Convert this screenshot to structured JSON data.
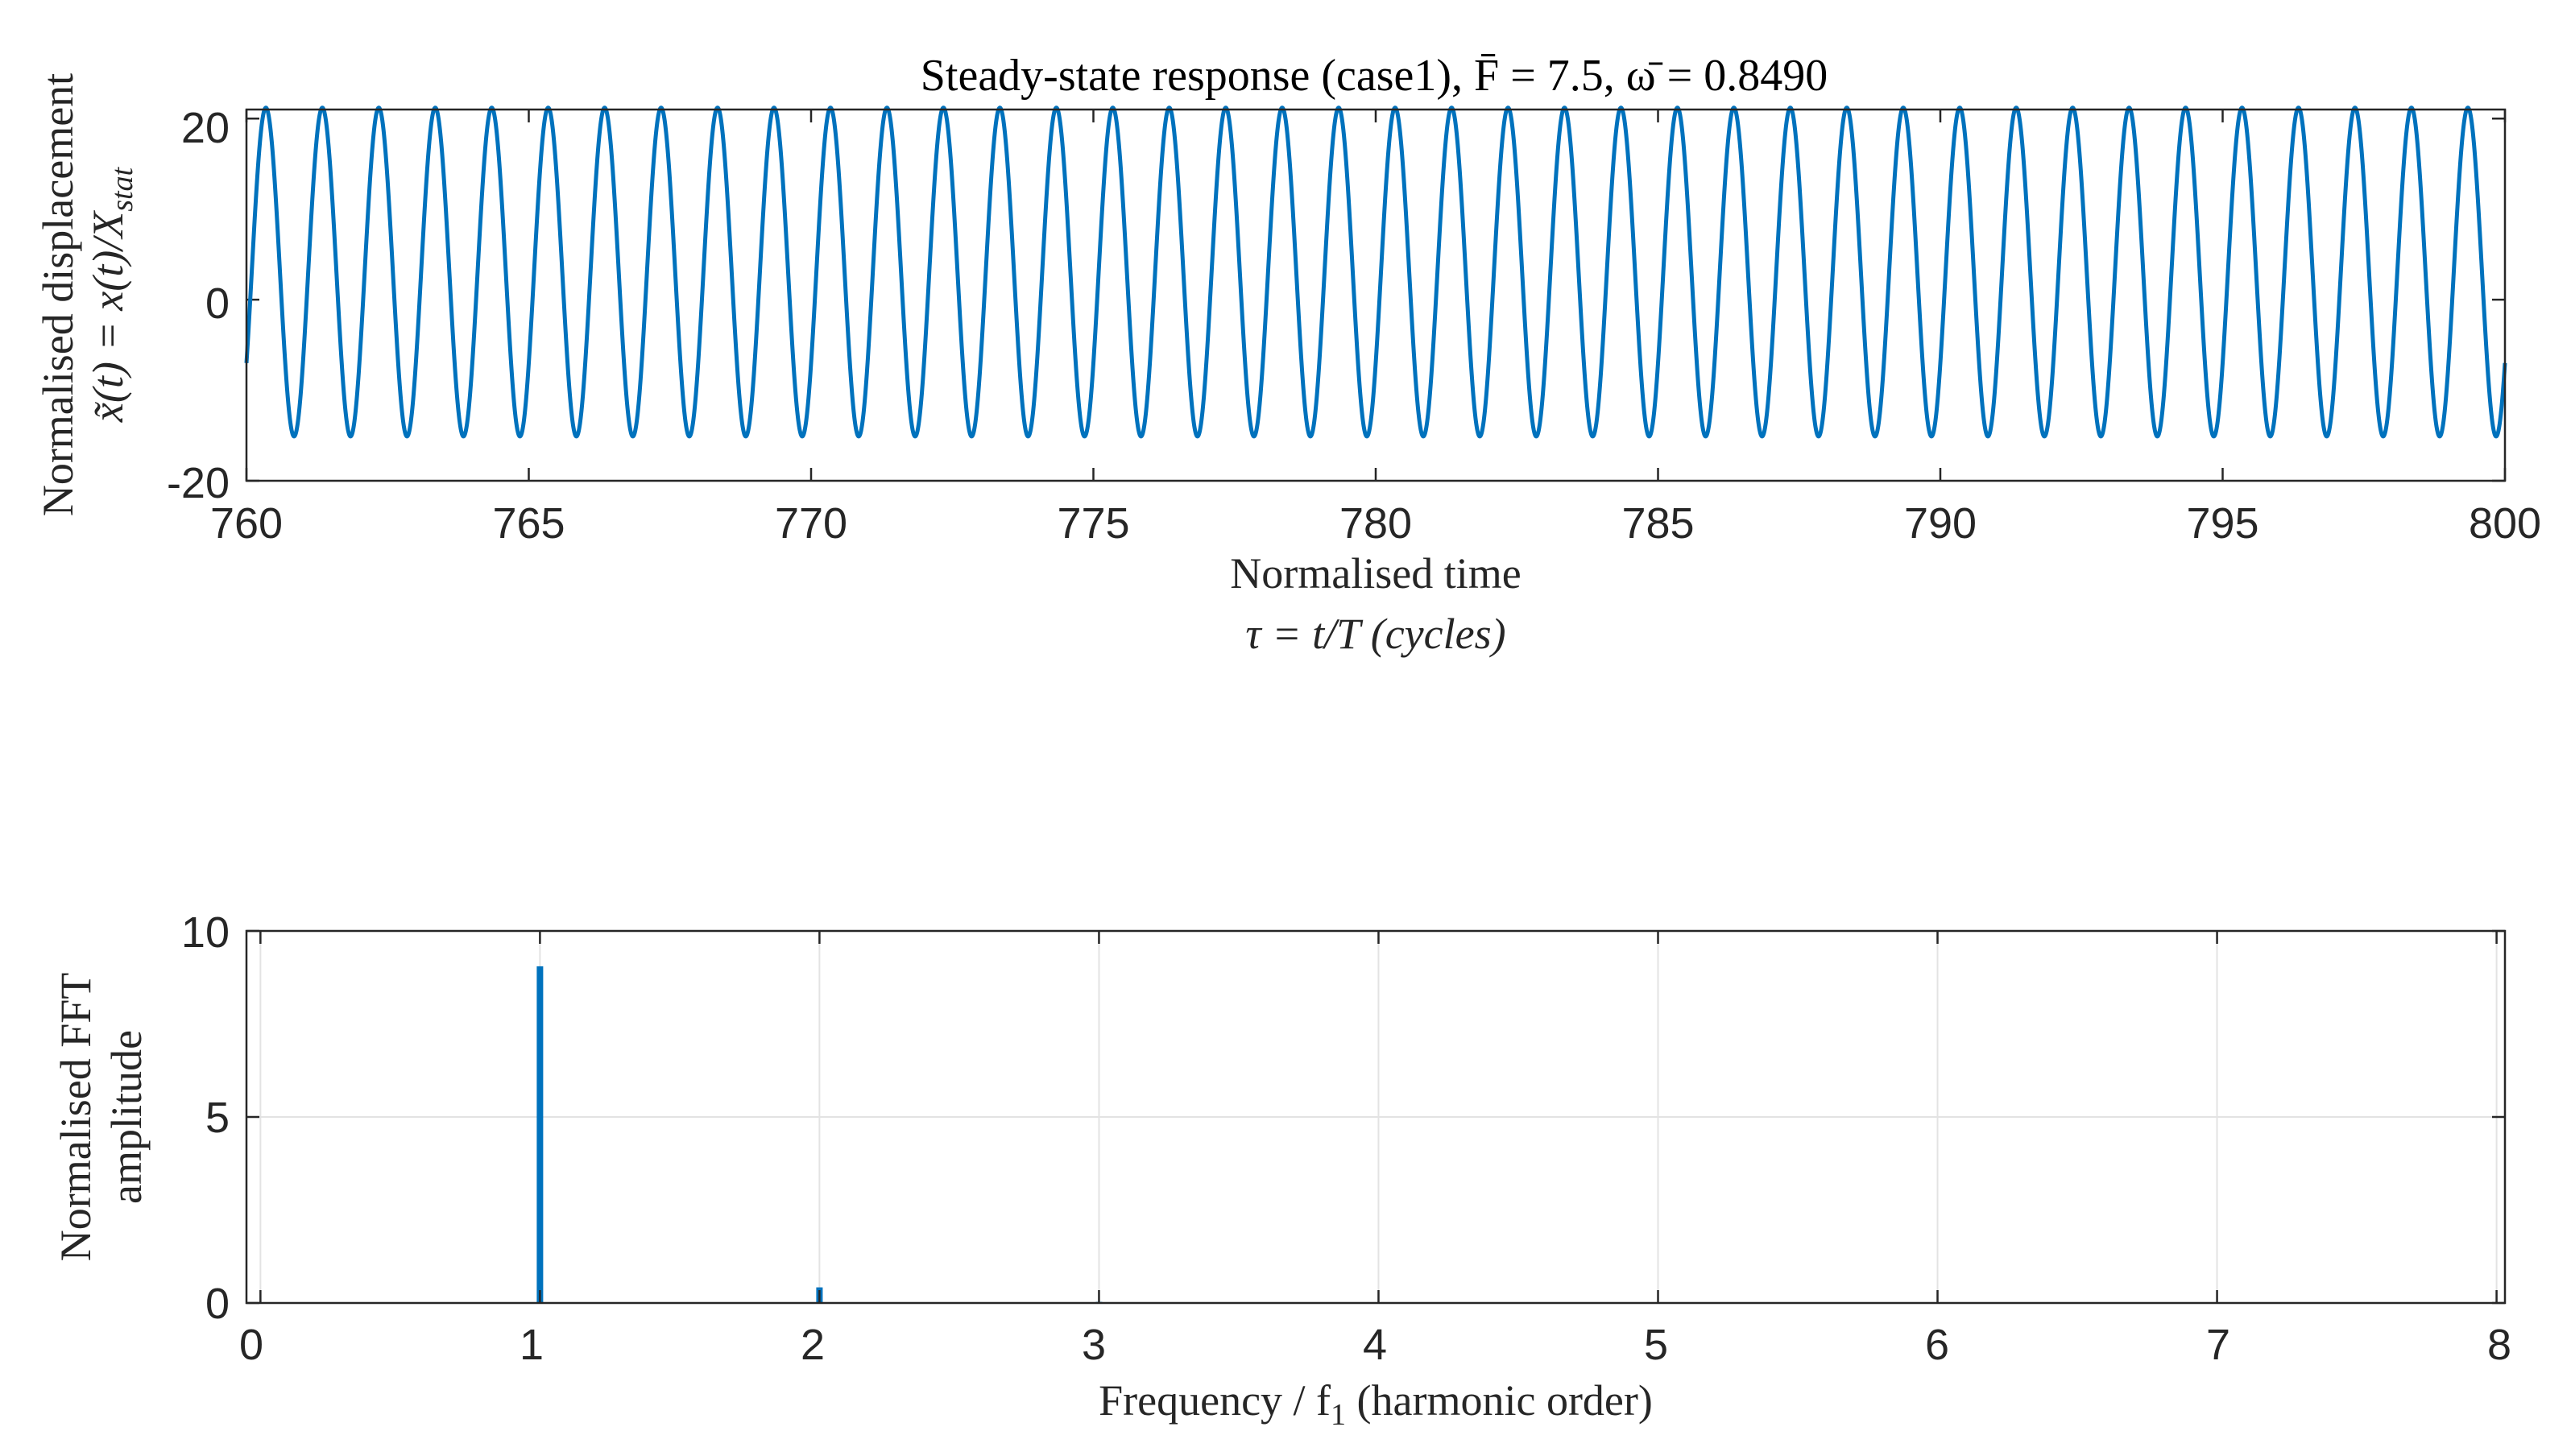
{
  "colors": {
    "series": "#0072BD",
    "axes": "#262626",
    "grid": "#e3e3e3"
  },
  "chart_data": [
    {
      "type": "line",
      "title": "Steady-state response (case1), F̄ = 7.5, ω̄ = 0.8490",
      "xlabel_line1": "Normalised time",
      "xlabel_line2": "τ = t/T (cycles)",
      "ylabel_line1": "Normalised displacement",
      "ylabel_line2": "x̃(t) = x(t)/X",
      "ylabel_sub": "stat",
      "xlim": [
        760,
        800
      ],
      "ylim": [
        -20,
        21
      ],
      "xticks": [
        "760",
        "765",
        "770",
        "775",
        "780",
        "785",
        "790",
        "795",
        "800"
      ],
      "yticks": [
        "20",
        "0",
        "-20"
      ],
      "grid": false,
      "series": [
        {
          "kind": "periodic",
          "cycles_per_unit": 1,
          "max": 21.2,
          "min": -15.1,
          "start_value": -7.0,
          "end_value": -7.5
        }
      ]
    },
    {
      "type": "bar",
      "title": "",
      "xlabel_prefix": "Frequency / f",
      "xlabel_sub": "1",
      "xlabel_suffix": " (harmonic order)",
      "ylabel_line1": "Normalised FFT",
      "ylabel_line2": "amplitude",
      "xlim": [
        -0.05,
        8.03
      ],
      "ylim": [
        0,
        10
      ],
      "xticks": [
        "0",
        "1",
        "2",
        "3",
        "4",
        "5",
        "6",
        "7",
        "8"
      ],
      "yticks": [
        "10",
        "5",
        "0"
      ],
      "grid": true,
      "x": [
        1,
        2,
        3
      ],
      "values": [
        9.05,
        0.42,
        0.03
      ]
    }
  ]
}
